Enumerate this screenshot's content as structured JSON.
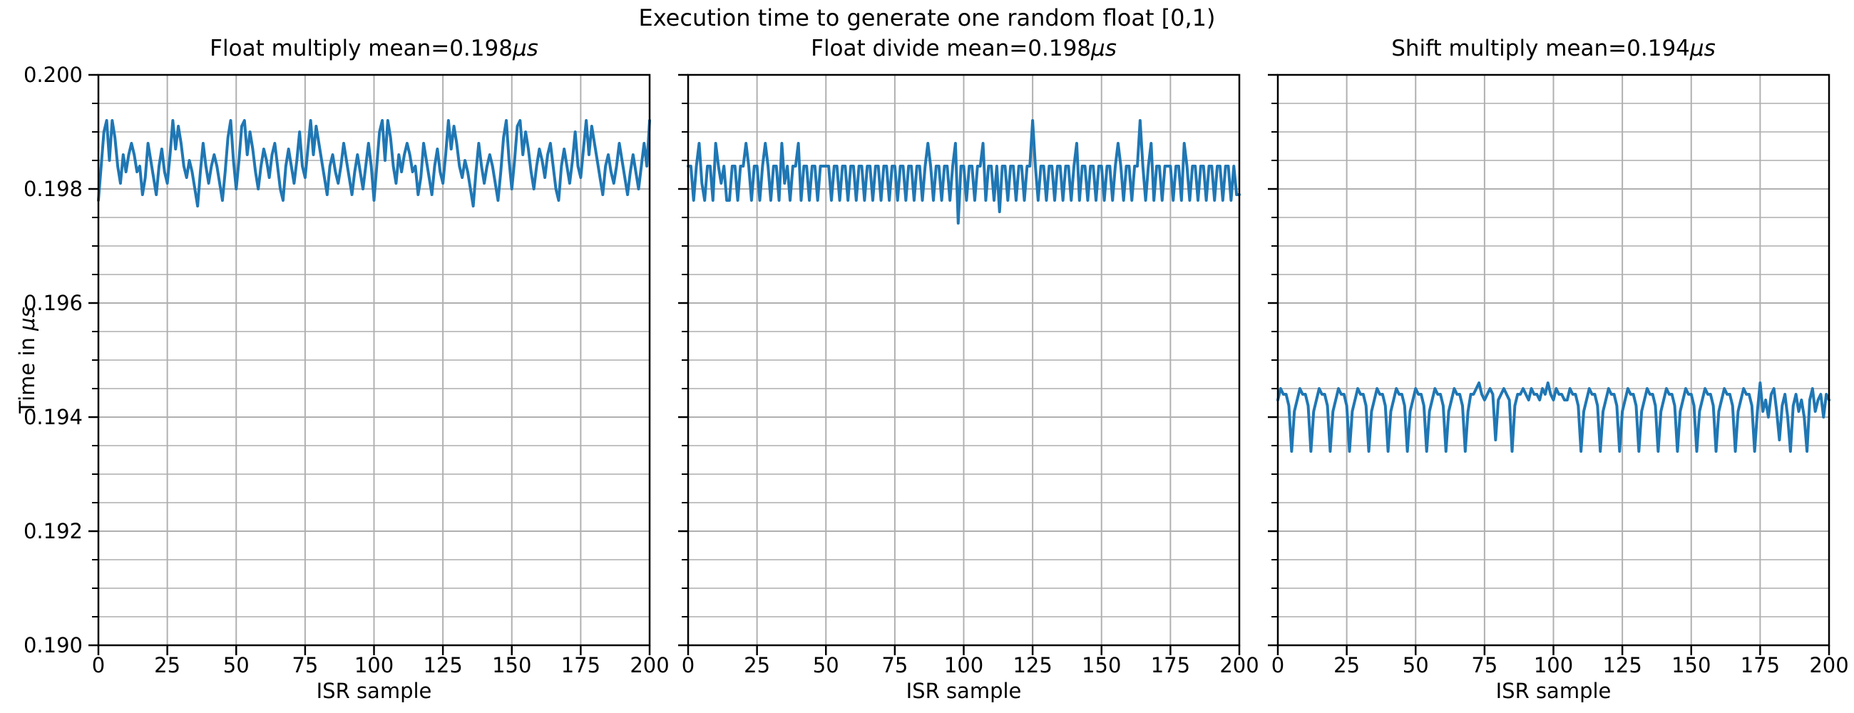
{
  "figure": {
    "title": "Execution time to generate one random float [0,1)"
  },
  "ylabel": {
    "prefix": "Time in ",
    "unit": "μs"
  },
  "colors": {
    "line": "#1f77b4",
    "grid_major": "#b0b0b0",
    "grid_minor": "#b9b9b9",
    "spine": "#000000",
    "text": "#000000",
    "background": "#ffffff"
  },
  "axes": {
    "x": {
      "min": 0,
      "max": 200,
      "ticks": [
        0,
        25,
        50,
        75,
        100,
        125,
        150,
        175,
        200
      ],
      "label": "ISR sample"
    },
    "y": {
      "min": 0.19,
      "max": 0.2,
      "minor_step": 0.0005,
      "ticks": [
        {
          "value": 0.2,
          "label": "0.200"
        },
        {
          "value": 0.198,
          "label": "0.198"
        },
        {
          "value": 0.196,
          "label": "0.196"
        },
        {
          "value": 0.194,
          "label": "0.194"
        },
        {
          "value": 0.192,
          "label": "0.192"
        },
        {
          "value": 0.19,
          "label": "0.190"
        }
      ]
    }
  },
  "chart_data": [
    {
      "type": "line",
      "title": "Float multiply mean=0.198",
      "title_unit": "μs",
      "xlabel": "ISR sample",
      "ylabel": "Time in μs",
      "mean": 0.198,
      "xlim": [
        0,
        200
      ],
      "ylim": [
        0.19,
        0.2
      ],
      "x": {
        "start": 0,
        "step": 1,
        "count": 201
      },
      "values": [
        0.1978,
        0.1984,
        0.199,
        0.1992,
        0.1985,
        0.1992,
        0.1989,
        0.1984,
        0.1981,
        0.1986,
        0.1983,
        0.1986,
        0.1988,
        0.1986,
        0.1983,
        0.1984,
        0.1979,
        0.1982,
        0.1988,
        0.1985,
        0.1982,
        0.1979,
        0.1984,
        0.1987,
        0.1983,
        0.1981,
        0.1986,
        0.1992,
        0.1987,
        0.1991,
        0.1988,
        0.1984,
        0.1982,
        0.1985,
        0.1983,
        0.198,
        0.1977,
        0.1983,
        0.1988,
        0.1984,
        0.1981,
        0.1984,
        0.1986,
        0.1984,
        0.1981,
        0.1978,
        0.1983,
        0.1989,
        0.1992,
        0.1985,
        0.198,
        0.1985,
        0.1991,
        0.1992,
        0.1986,
        0.199,
        0.1987,
        0.1983,
        0.198,
        0.1984,
        0.1987,
        0.1985,
        0.1982,
        0.1986,
        0.1988,
        0.1984,
        0.198,
        0.1978,
        0.1984,
        0.1987,
        0.1984,
        0.1981,
        0.1985,
        0.199,
        0.1984,
        0.1982,
        0.1987,
        0.1992,
        0.1986,
        0.1991,
        0.1988,
        0.1985,
        0.1982,
        0.1979,
        0.1984,
        0.1986,
        0.1983,
        0.1981,
        0.1984,
        0.1988,
        0.1985,
        0.1982,
        0.1979,
        0.1983,
        0.1986,
        0.1983,
        0.198,
        0.1984,
        0.1988,
        0.1984,
        0.1978,
        0.1984,
        0.199,
        0.1992,
        0.1985,
        0.1992,
        0.1989,
        0.1984,
        0.1981,
        0.1986,
        0.1983,
        0.1986,
        0.1988,
        0.1986,
        0.1983,
        0.1984,
        0.1979,
        0.1982,
        0.1988,
        0.1985,
        0.1982,
        0.1979,
        0.1984,
        0.1987,
        0.1983,
        0.1981,
        0.1986,
        0.1992,
        0.1987,
        0.1991,
        0.1988,
        0.1984,
        0.1982,
        0.1985,
        0.1983,
        0.198,
        0.1977,
        0.1983,
        0.1988,
        0.1984,
        0.1981,
        0.1984,
        0.1986,
        0.1984,
        0.1981,
        0.1978,
        0.1983,
        0.1989,
        0.1992,
        0.1985,
        0.198,
        0.1985,
        0.1991,
        0.1992,
        0.1986,
        0.199,
        0.1987,
        0.1983,
        0.198,
        0.1984,
        0.1987,
        0.1985,
        0.1982,
        0.1986,
        0.1988,
        0.1984,
        0.198,
        0.1978,
        0.1984,
        0.1987,
        0.1984,
        0.1981,
        0.1985,
        0.199,
        0.1984,
        0.1982,
        0.1987,
        0.1992,
        0.1986,
        0.1991,
        0.1988,
        0.1985,
        0.1982,
        0.1979,
        0.1984,
        0.1986,
        0.1983,
        0.1981,
        0.1984,
        0.1988,
        0.1985,
        0.1982,
        0.1979,
        0.1983,
        0.1986,
        0.1983,
        0.198,
        0.1984,
        0.1988,
        0.1984,
        0.1992
      ]
    },
    {
      "type": "line",
      "title": "Float divide mean=0.198",
      "title_unit": "μs",
      "xlabel": "ISR sample",
      "ylabel": "Time in μs",
      "mean": 0.198,
      "xlim": [
        0,
        200
      ],
      "ylim": [
        0.19,
        0.2
      ],
      "x": {
        "start": 0,
        "step": 1,
        "count": 201
      },
      "values": [
        0.1984,
        0.1984,
        0.1978,
        0.1984,
        0.1988,
        0.1981,
        0.1978,
        0.1984,
        0.1984,
        0.1978,
        0.1988,
        0.1984,
        0.1981,
        0.1984,
        0.1978,
        0.1978,
        0.1984,
        0.1984,
        0.1978,
        0.1984,
        0.1984,
        0.1988,
        0.1984,
        0.1978,
        0.1984,
        0.1984,
        0.1978,
        0.1984,
        0.1988,
        0.1984,
        0.1978,
        0.1984,
        0.1984,
        0.1978,
        0.1988,
        0.1981,
        0.1984,
        0.1978,
        0.1984,
        0.1984,
        0.1988,
        0.1978,
        0.1984,
        0.1984,
        0.1978,
        0.1984,
        0.1984,
        0.1978,
        0.1984,
        0.1984,
        0.1984,
        0.1984,
        0.1978,
        0.1984,
        0.1984,
        0.1978,
        0.1984,
        0.1984,
        0.1978,
        0.1984,
        0.1984,
        0.1978,
        0.1984,
        0.1984,
        0.1978,
        0.1984,
        0.1984,
        0.1978,
        0.1984,
        0.1984,
        0.1978,
        0.1984,
        0.1984,
        0.1978,
        0.1984,
        0.1984,
        0.1978,
        0.1984,
        0.1984,
        0.1978,
        0.1984,
        0.1984,
        0.1978,
        0.1984,
        0.1984,
        0.1978,
        0.1984,
        0.1988,
        0.1984,
        0.1978,
        0.1984,
        0.1984,
        0.1978,
        0.1984,
        0.1984,
        0.1978,
        0.1984,
        0.1988,
        0.1974,
        0.1984,
        0.1984,
        0.1978,
        0.1984,
        0.1984,
        0.1978,
        0.1984,
        0.1984,
        0.1988,
        0.1978,
        0.1984,
        0.1984,
        0.1978,
        0.1984,
        0.1976,
        0.1984,
        0.1984,
        0.1978,
        0.1984,
        0.1984,
        0.1978,
        0.1984,
        0.1984,
        0.1978,
        0.1984,
        0.1984,
        0.1992,
        0.1984,
        0.1978,
        0.1984,
        0.1984,
        0.1978,
        0.1984,
        0.1984,
        0.1978,
        0.1984,
        0.1984,
        0.1978,
        0.1984,
        0.1984,
        0.1978,
        0.1984,
        0.1988,
        0.1978,
        0.1984,
        0.1984,
        0.1978,
        0.1984,
        0.1984,
        0.1978,
        0.1984,
        0.1984,
        0.1978,
        0.1984,
        0.1984,
        0.1978,
        0.1984,
        0.1988,
        0.1984,
        0.1978,
        0.1984,
        0.1984,
        0.1978,
        0.1984,
        0.1984,
        0.1992,
        0.1984,
        0.1978,
        0.1984,
        0.1988,
        0.1978,
        0.1984,
        0.1984,
        0.1978,
        0.1984,
        0.1984,
        0.1984,
        0.1978,
        0.1984,
        0.1984,
        0.1978,
        0.1988,
        0.1984,
        0.1978,
        0.1984,
        0.1984,
        0.1978,
        0.1984,
        0.1984,
        0.1978,
        0.1984,
        0.1984,
        0.1978,
        0.1984,
        0.1984,
        0.1978,
        0.1984,
        0.1984,
        0.1978,
        0.1984,
        0.1979,
        0.1979
      ]
    },
    {
      "type": "line",
      "title": "Shift multiply mean=0.194",
      "title_unit": "μs",
      "xlabel": "ISR sample",
      "ylabel": "Time in μs",
      "mean": 0.194,
      "xlim": [
        0,
        200
      ],
      "ylim": [
        0.19,
        0.2
      ],
      "x": {
        "start": 0,
        "step": 1,
        "count": 201
      },
      "values": [
        0.1943,
        0.1945,
        0.1944,
        0.1944,
        0.1942,
        0.1934,
        0.1941,
        0.1943,
        0.1945,
        0.1944,
        0.1944,
        0.1942,
        0.1934,
        0.1941,
        0.1943,
        0.1945,
        0.1944,
        0.1944,
        0.1942,
        0.1934,
        0.1941,
        0.1943,
        0.1945,
        0.1944,
        0.1944,
        0.1942,
        0.1934,
        0.1941,
        0.1943,
        0.1945,
        0.1944,
        0.1944,
        0.1942,
        0.1934,
        0.1941,
        0.1943,
        0.1945,
        0.1944,
        0.1944,
        0.1942,
        0.1934,
        0.1941,
        0.1943,
        0.1945,
        0.1944,
        0.1944,
        0.1942,
        0.1934,
        0.1941,
        0.1943,
        0.1945,
        0.1944,
        0.1944,
        0.1942,
        0.1934,
        0.1941,
        0.1943,
        0.1945,
        0.1944,
        0.1944,
        0.1942,
        0.1934,
        0.1941,
        0.1943,
        0.1945,
        0.1944,
        0.1944,
        0.1942,
        0.1934,
        0.1941,
        0.1944,
        0.1944,
        0.1945,
        0.1946,
        0.1944,
        0.1943,
        0.1944,
        0.1945,
        0.1944,
        0.1936,
        0.1943,
        0.1944,
        0.1945,
        0.1944,
        0.1943,
        0.1934,
        0.1942,
        0.1944,
        0.1944,
        0.1945,
        0.1944,
        0.1943,
        0.1945,
        0.1944,
        0.1944,
        0.1943,
        0.1945,
        0.1944,
        0.1946,
        0.1944,
        0.1943,
        0.1945,
        0.1944,
        0.1944,
        0.1943,
        0.1943,
        0.1945,
        0.1944,
        0.1944,
        0.1942,
        0.1934,
        0.1941,
        0.1943,
        0.1945,
        0.1944,
        0.1944,
        0.1942,
        0.1934,
        0.1941,
        0.1943,
        0.1945,
        0.1944,
        0.1944,
        0.1942,
        0.1934,
        0.1941,
        0.1943,
        0.1945,
        0.1944,
        0.1944,
        0.1942,
        0.1934,
        0.1941,
        0.1943,
        0.1945,
        0.1944,
        0.1944,
        0.1942,
        0.1934,
        0.1941,
        0.1943,
        0.1945,
        0.1944,
        0.1944,
        0.1942,
        0.1934,
        0.1941,
        0.1943,
        0.1945,
        0.1944,
        0.1944,
        0.1942,
        0.1934,
        0.1941,
        0.1943,
        0.1945,
        0.1944,
        0.1944,
        0.1942,
        0.1934,
        0.1941,
        0.1943,
        0.1945,
        0.1944,
        0.1944,
        0.1942,
        0.1934,
        0.1941,
        0.1943,
        0.1945,
        0.1944,
        0.1944,
        0.1942,
        0.1934,
        0.1941,
        0.1946,
        0.1941,
        0.1943,
        0.194,
        0.1944,
        0.1945,
        0.1941,
        0.1936,
        0.1942,
        0.1944,
        0.194,
        0.1934,
        0.1942,
        0.1944,
        0.1941,
        0.1943,
        0.194,
        0.1934,
        0.1943,
        0.1945,
        0.1941,
        0.1943,
        0.1944,
        0.194,
        0.1944,
        0.1943
      ]
    }
  ]
}
